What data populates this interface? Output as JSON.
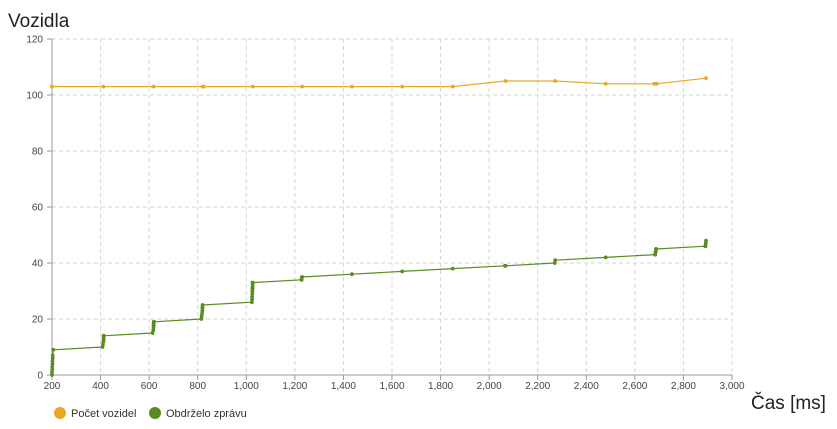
{
  "chart_data": {
    "type": "line",
    "ylabel": "Vozidla",
    "xlabel": "Čas [ms]",
    "xlim": [
      200,
      3000
    ],
    "ylim": [
      0,
      120
    ],
    "x_ticks": [
      "200",
      "400",
      "600",
      "800",
      "1,000",
      "1,200",
      "1,400",
      "1,600",
      "1,800",
      "2,000",
      "2,200",
      "2,400",
      "2,600",
      "2,800",
      "3,000"
    ],
    "y_ticks": [
      "0",
      "20",
      "40",
      "60",
      "80",
      "100",
      "120"
    ],
    "grid": true,
    "legend_position": "bottom-left",
    "series": [
      {
        "name": "Počet vozidel",
        "color": "#e8a825",
        "x": [
          200,
          200,
          412,
          618,
          820,
          825,
          1027,
          1230,
          1435,
          1642,
          1850,
          2068,
          2272,
          2480,
          2680,
          2690,
          2893
        ],
        "y": [
          103,
          103,
          103,
          103,
          103,
          103,
          103,
          103,
          103,
          103,
          103,
          105,
          105,
          104,
          104,
          104,
          106
        ]
      },
      {
        "name": "Obdrželo zprávu",
        "color": "#5a8a21",
        "x": [
          200,
          200,
          201,
          201,
          202,
          202,
          203,
          203,
          205,
          408,
          410,
          412,
          412,
          413,
          413,
          413,
          614,
          617,
          618,
          618,
          619,
          619,
          620,
          815,
          816,
          818,
          819,
          819,
          820,
          820,
          1023,
          1024,
          1024,
          1025,
          1025,
          1025,
          1026,
          1026,
          1026,
          1026,
          1227,
          1228,
          1229,
          1230,
          1435,
          1642,
          1850,
          2065,
          2068,
          2270,
          2272,
          2480,
          2683,
          2684,
          2685,
          2686,
          2687,
          2688,
          2890,
          2891,
          2892,
          2893
        ],
        "y": [
          0,
          1,
          2,
          3,
          4,
          5,
          6,
          7,
          9,
          10,
          11,
          12,
          13,
          13,
          14,
          14,
          15,
          16,
          17,
          18,
          18,
          19,
          19,
          20,
          21,
          22,
          23,
          24,
          24,
          25,
          26,
          27,
          28,
          29,
          30,
          31,
          31,
          32,
          33,
          33,
          34,
          34,
          35,
          35,
          36,
          37,
          38,
          39,
          39,
          40,
          41,
          42,
          43,
          43,
          44,
          44,
          45,
          45,
          46,
          46,
          47,
          48
        ]
      }
    ]
  }
}
